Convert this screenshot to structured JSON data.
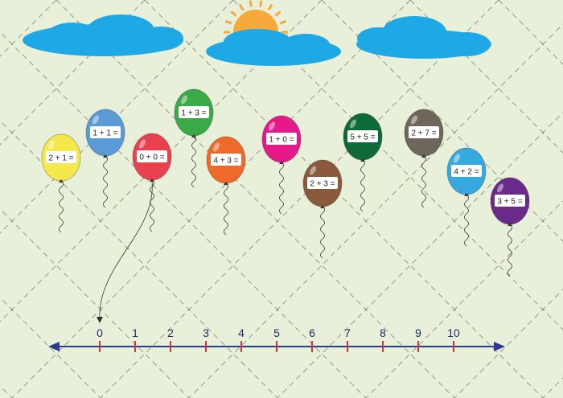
{
  "colors": {
    "background": "#e9f0d9",
    "cloud": "#1ea8e6",
    "sun": "#f7a93a",
    "number_line": "#2a3a8c",
    "tick": "#d8343c"
  },
  "balloons": [
    {
      "label": "2 + 1 =",
      "color": "#f4e84a"
    },
    {
      "label": "1 + 1 =",
      "color": "#5b9bd5"
    },
    {
      "label": "0 + 0 =",
      "color": "#e8424f"
    },
    {
      "label": "1 + 3 =",
      "color": "#3aaa48"
    },
    {
      "label": "4 + 3 =",
      "color": "#ef6a2a"
    },
    {
      "label": "1 + 0 =",
      "color": "#e5198a"
    },
    {
      "label": "2 + 3 =",
      "color": "#8b5a3c"
    },
    {
      "label": "5 + 5 =",
      "color": "#0f6a3a"
    },
    {
      "label": "2 + 7 =",
      "color": "#6e655b"
    },
    {
      "label": "4 + 2 =",
      "color": "#36a9e1"
    },
    {
      "label": "3 + 5 =",
      "color": "#6a2a8a"
    }
  ],
  "number_line": {
    "labels": [
      "0",
      "1",
      "2",
      "3",
      "4",
      "5",
      "6",
      "7",
      "8",
      "9",
      "10"
    ]
  }
}
